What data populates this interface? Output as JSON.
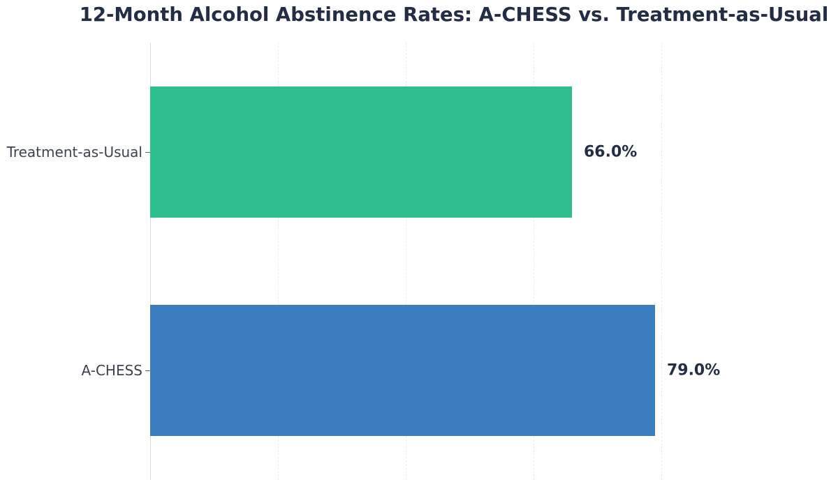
{
  "title": "12-Month Alcohol Abstinence Rates: A-CHESS vs. Treatment-as-Usual",
  "chart_data": {
    "type": "bar",
    "orientation": "horizontal",
    "title": "12-Month Alcohol Abstinence Rates: A-CHESS vs. Treatment-as-Usual",
    "categories": [
      "Treatment-as-Usual",
      "A-CHESS"
    ],
    "values": [
      66.0,
      79.0
    ],
    "value_labels": [
      "66.0%",
      "79.0%"
    ],
    "bar_colors": [
      "#2dbd8e",
      "#3b7dbe"
    ],
    "xlabel": "",
    "ylabel": "",
    "xlim": [
      0,
      103.7
    ],
    "gridline_values": [
      20,
      40,
      60,
      80
    ],
    "grid_style": "dashed-vertical",
    "legend": "none",
    "title_color": "#232d45",
    "value_label_color": "#232d45",
    "tick_label_color": "#3c434e"
  }
}
